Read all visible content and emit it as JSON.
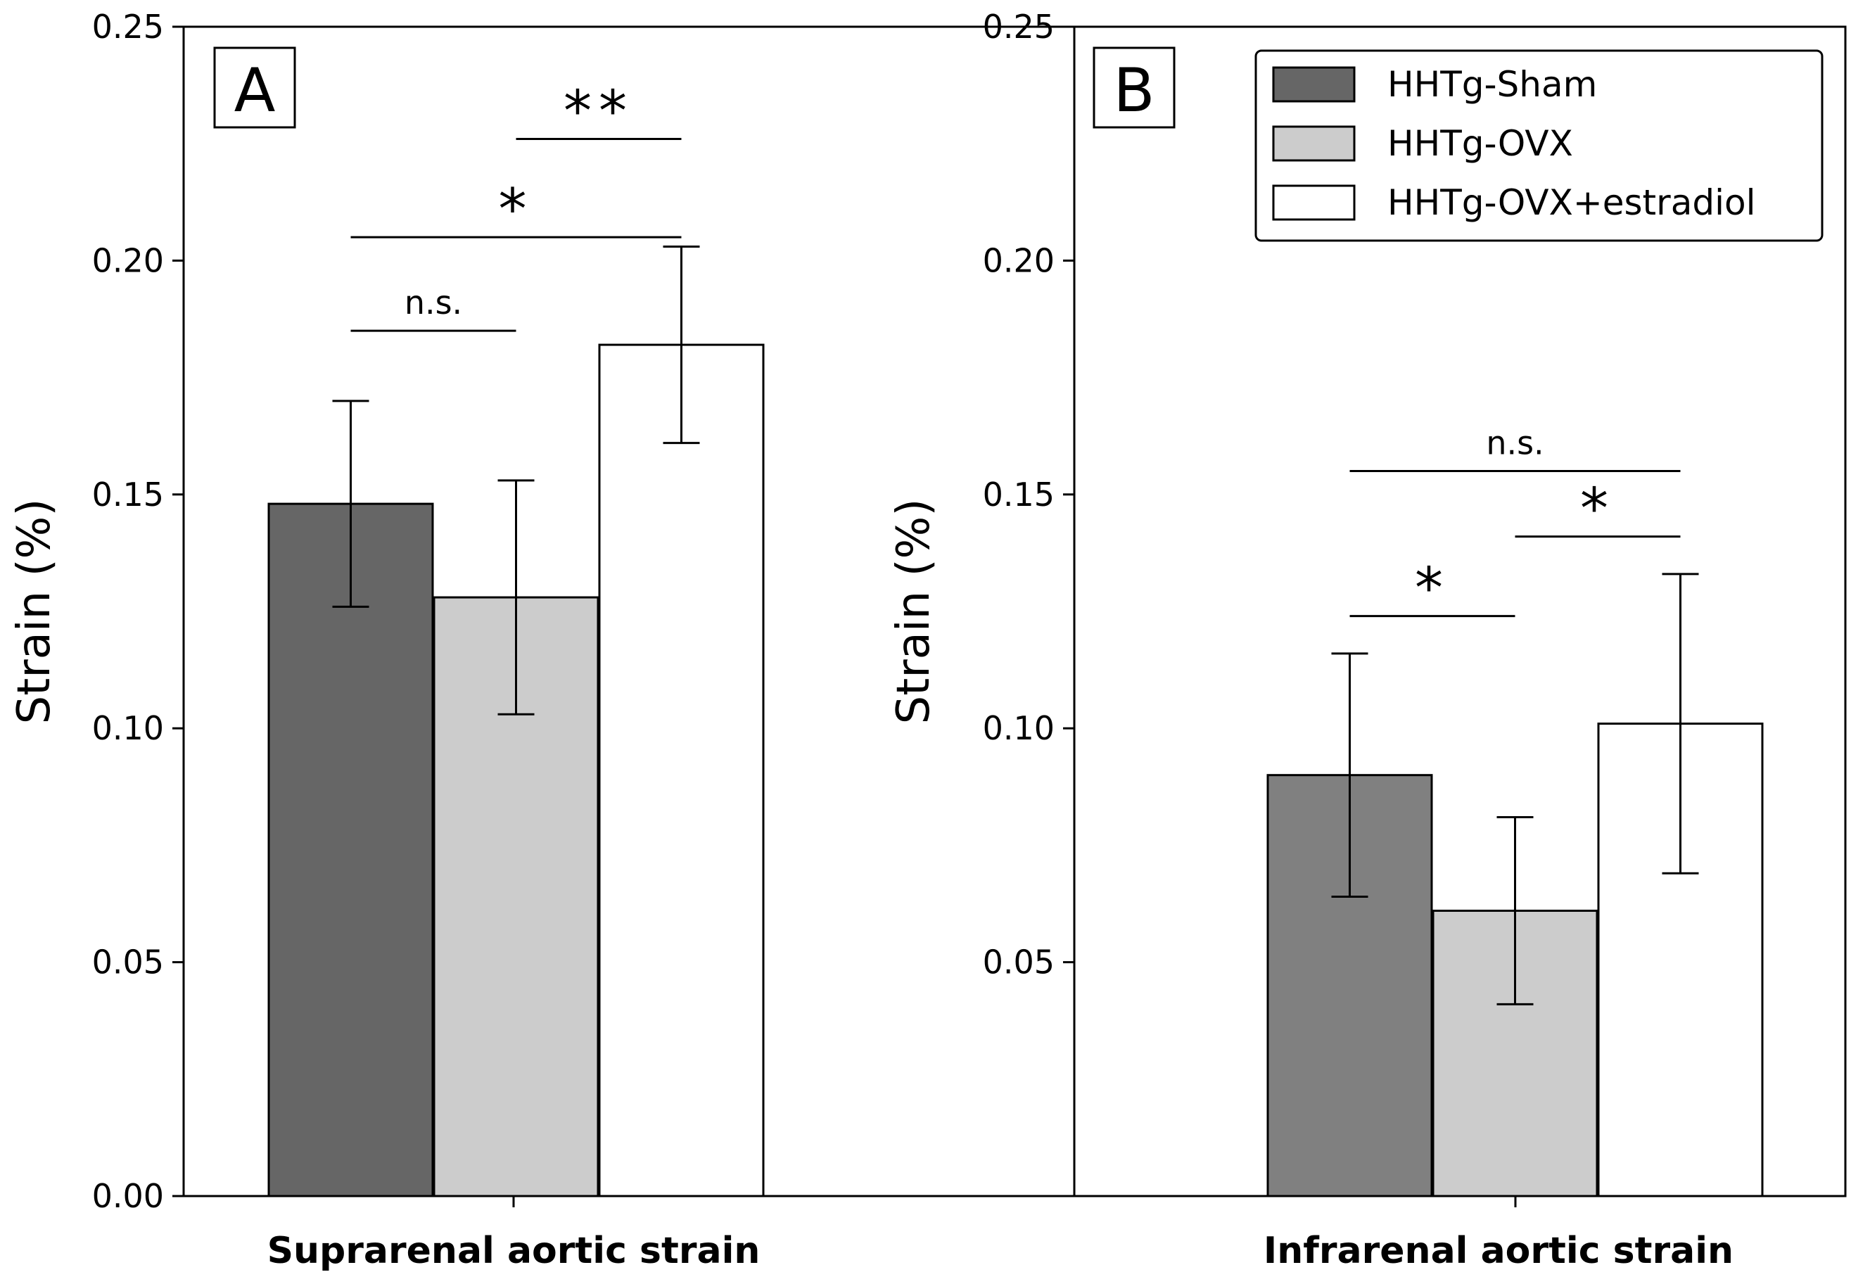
{
  "chart_data": [
    {
      "type": "bar",
      "panel": "A",
      "category": "Suprarenal aortic strain",
      "ylabel": "Strain (%)",
      "ylim": [
        0,
        0.25
      ],
      "yticks": [
        "0.00",
        "0.05",
        "0.10",
        "0.15",
        "0.20",
        "0.25"
      ],
      "series": [
        {
          "name": "HHTg-Sham",
          "value": 0.148,
          "err_low": 0.126,
          "err_high": 0.17,
          "color": "#666666"
        },
        {
          "name": "HHTg-OVX",
          "value": 0.128,
          "err_low": 0.103,
          "err_high": 0.153,
          "color": "#cccccc"
        },
        {
          "name": "HHTg-OVX+estradiol",
          "value": 0.182,
          "err_low": 0.161,
          "err_high": 0.203,
          "color": "#ffffff"
        }
      ],
      "annotations": [
        {
          "label": "n.s.",
          "from": 0,
          "to": 1,
          "y": 0.185,
          "kind": "ns"
        },
        {
          "label": "*",
          "from": 0,
          "to": 2,
          "y": 0.205,
          "kind": "star"
        },
        {
          "label": "**",
          "from": 1,
          "to": 2,
          "y": 0.226,
          "kind": "star"
        }
      ]
    },
    {
      "type": "bar",
      "panel": "B",
      "category": "Infrarenal aortic strain",
      "ylabel": "Strain (%)",
      "ylim": [
        0,
        0.25
      ],
      "yticks": [
        "0.05",
        "0.10",
        "0.15",
        "0.20",
        "0.25"
      ],
      "series": [
        {
          "name": "HHTg-Sham",
          "value": 0.09,
          "err_low": 0.064,
          "err_high": 0.116,
          "color": "#808080"
        },
        {
          "name": "HHTg-OVX",
          "value": 0.061,
          "err_low": 0.041,
          "err_high": 0.081,
          "color": "#cccccc"
        },
        {
          "name": "HHTg-OVX+estradiol",
          "value": 0.101,
          "err_low": 0.069,
          "err_high": 0.133,
          "color": "#ffffff"
        }
      ],
      "annotations": [
        {
          "label": "n.s.",
          "from": 0,
          "to": 2,
          "y": 0.155,
          "kind": "ns"
        },
        {
          "label": "*",
          "from": 1,
          "to": 2,
          "y": 0.141,
          "kind": "star"
        },
        {
          "label": "*",
          "from": 0,
          "to": 1,
          "y": 0.124,
          "kind": "star"
        }
      ]
    }
  ],
  "legend": {
    "items": [
      {
        "label": "HHTg-Sham",
        "color": "#666666"
      },
      {
        "label": "HHTg-OVX",
        "color": "#cccccc"
      },
      {
        "label": "HHTg-OVX+estradiol",
        "color": "#ffffff"
      }
    ]
  }
}
